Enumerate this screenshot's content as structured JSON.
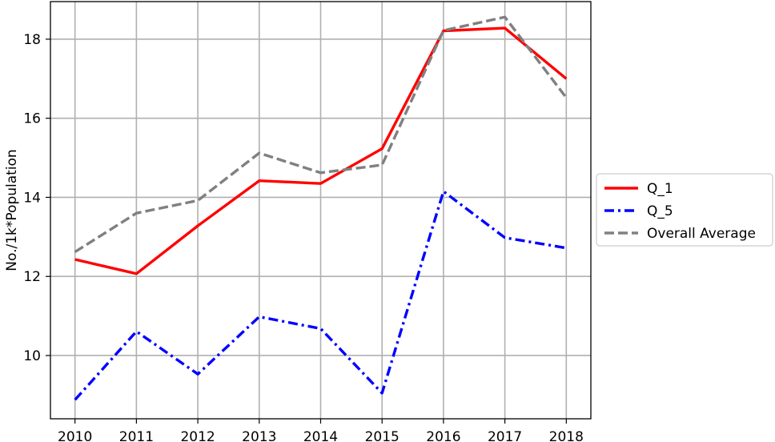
{
  "chart_data": {
    "type": "line",
    "title": "",
    "xlabel": "",
    "ylabel": "No./1k*Population",
    "x": [
      2010,
      2011,
      2012,
      2013,
      2014,
      2015,
      2016,
      2017,
      2018
    ],
    "x_tick_labels": [
      "2010",
      "2011",
      "2012",
      "2013",
      "2014",
      "2015",
      "2016",
      "2017",
      "2018"
    ],
    "y_ticks": [
      10,
      12,
      14,
      16,
      18
    ],
    "y_tick_labels": [
      "10",
      "12",
      "14",
      "16",
      "18"
    ],
    "xlim": [
      2009.6,
      2018.4
    ],
    "ylim": [
      8.4,
      18.95
    ],
    "grid": true,
    "legend_position": "center-right outside",
    "series": [
      {
        "name": "Q_1",
        "color": "#ff0000",
        "style": "solid",
        "values": [
          12.43,
          12.07,
          13.28,
          14.42,
          14.35,
          15.23,
          18.21,
          18.28,
          17.0
        ]
      },
      {
        "name": "Q_5",
        "color": "#0000ff",
        "style": "dashdot",
        "values": [
          8.88,
          10.61,
          9.53,
          10.98,
          10.68,
          9.05,
          14.15,
          12.98,
          12.72
        ]
      },
      {
        "name": "Overall Average",
        "color": "#808080",
        "style": "dashed",
        "values": [
          12.62,
          13.6,
          13.92,
          15.12,
          14.62,
          14.82,
          18.22,
          18.56,
          16.52
        ]
      }
    ]
  }
}
